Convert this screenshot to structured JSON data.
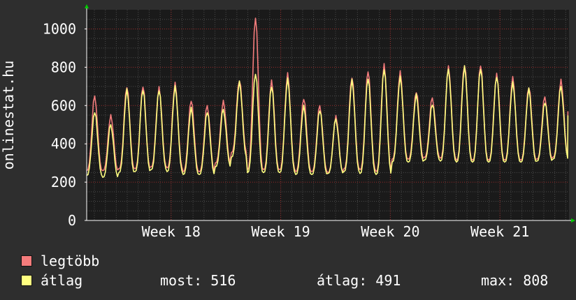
{
  "chart_data": {
    "type": "line",
    "ylabel": "onlinestat.hu",
    "xlabel": "",
    "title": "",
    "ylim": [
      0,
      1100
    ],
    "y_ticks": [
      0,
      200,
      400,
      600,
      800,
      1000
    ],
    "x_tick_labels": [
      "Week 18",
      "Week 19",
      "Week 20",
      "Week 21"
    ],
    "x_range_days": [
      0,
      44
    ],
    "week_tick_positions_days": [
      7.7,
      17.7,
      27.7,
      37.7
    ],
    "grid": true,
    "colors": {
      "background": "#2e2e2e",
      "plot_background": "#1a1a1a",
      "grid_major": "#9b2c2c",
      "grid_minor": "#4a4a4a",
      "axis_arrow": "#00cc00",
      "legtobb": "#f47c7c",
      "atlag": "#ffff80"
    },
    "series": [
      {
        "name": "legtöbb",
        "color": "#f47c7c",
        "daily_peak": [
          650,
          545,
          705,
          700,
          695,
          710,
          630,
          600,
          620,
          740,
          1060,
          730,
          760,
          640,
          600,
          540,
          755,
          780,
          815,
          770,
          675,
          640,
          800,
          820,
          810,
          765,
          740,
          700,
          645,
          730
        ],
        "daily_trough": [
          260,
          260,
          270,
          270,
          280,
          275,
          255,
          255,
          300,
          355,
          265,
          265,
          265,
          255,
          255,
          250,
          270,
          265,
          255,
          320,
          320,
          330,
          325,
          315,
          315,
          315,
          315,
          315,
          320,
          330
        ]
      },
      {
        "name": "átlag",
        "color": "#ffff80",
        "daily_peak": [
          570,
          500,
          680,
          690,
          680,
          700,
          580,
          570,
          580,
          720,
          775,
          700,
          740,
          590,
          580,
          530,
          730,
          750,
          790,
          750,
          650,
          610,
          790,
          800,
          800,
          750,
          720,
          680,
          620,
          700
        ],
        "daily_trough": [
          235,
          225,
          250,
          255,
          265,
          255,
          240,
          240,
          280,
          330,
          250,
          250,
          250,
          240,
          240,
          245,
          255,
          245,
          240,
          305,
          305,
          315,
          310,
          305,
          305,
          305,
          305,
          305,
          310,
          320
        ]
      }
    ]
  },
  "legend": {
    "items": [
      {
        "label": "legtöbb",
        "color": "#f47c7c"
      },
      {
        "label": "átlag",
        "color": "#ffff80"
      }
    ]
  },
  "stats": {
    "most": "most: 516",
    "atlag": "átlag: 491",
    "max": "max: 808"
  }
}
